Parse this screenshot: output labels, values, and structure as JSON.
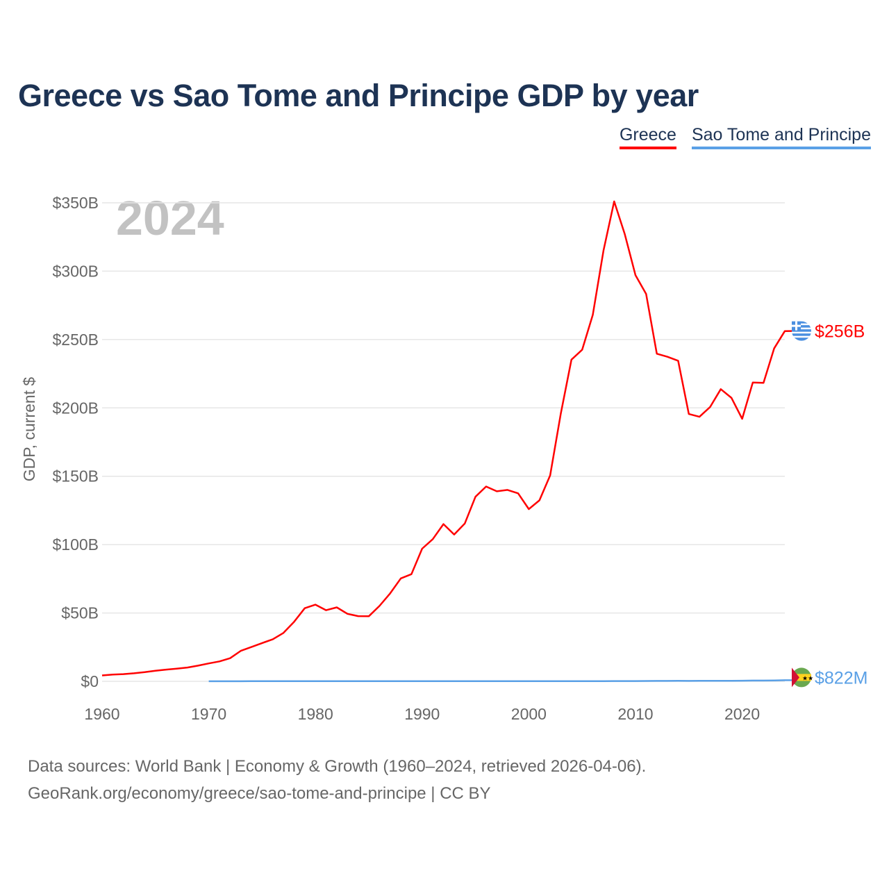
{
  "title": "Greece vs Sao Tome and Principe GDP by year",
  "year_label": "2024",
  "footer": {
    "line1": "Data sources: World Bank | Economy & Growth (1960–2024, retrieved 2026-04-06).",
    "line2": "GeoRank.org/economy/greece/sao-tome-and-principe | CC BY"
  },
  "chart_data": {
    "type": "line",
    "title": "Greece vs Sao Tome and Principe GDP by year",
    "xlabel": "",
    "ylabel": "GDP, current $",
    "xlim": [
      1960,
      2024
    ],
    "ylim": [
      0,
      350
    ],
    "y_units": "billions USD",
    "grid": true,
    "legend_placement": "top-right",
    "x_ticks": [
      1960,
      1970,
      1980,
      1990,
      2000,
      2010,
      2020
    ],
    "x_tick_labels": [
      "1960",
      "1970",
      "1980",
      "1990",
      "2000",
      "2010",
      "2020"
    ],
    "y_ticks": [
      0,
      50,
      100,
      150,
      200,
      250,
      300,
      350
    ],
    "y_tick_labels": [
      "$0",
      "$50B",
      "$100B",
      "$150B",
      "$200B",
      "$250B",
      "$300B",
      "$350B"
    ],
    "series": [
      {
        "name": "Greece",
        "color": "#ff0000",
        "end_label": "$256B",
        "flag": "greece-flag",
        "start_year": 1960,
        "values": [
          4.3,
          5.0,
          5.3,
          5.9,
          6.7,
          7.7,
          8.6,
          9.3,
          10.1,
          11.5,
          13.1,
          14.6,
          16.9,
          22.3,
          25.1,
          28.0,
          30.8,
          35.4,
          43.6,
          53.5,
          56.1,
          52.0,
          54.1,
          49.4,
          47.7,
          47.6,
          55.1,
          64.3,
          75.3,
          78.4,
          97.0,
          104.0,
          115.0,
          107.4,
          115.4,
          135.0,
          142.5,
          139.0,
          140.0,
          137.5,
          126.0,
          132.4,
          150.6,
          196.0,
          235.3,
          242.5,
          268.0,
          315.0,
          351.0,
          327.0,
          297.0,
          283.3,
          239.6,
          237.4,
          234.5,
          195.5,
          193.5,
          200.7,
          213.7,
          207.3,
          192.0,
          218.6,
          218.3,
          243.5,
          256.2
        ]
      },
      {
        "name": "Sao Tome and Principe",
        "color": "#5aa0e6",
        "end_label": "$822M",
        "flag": "sao-tome-and-principe-flag",
        "start_year": 1970,
        "values": [
          0.05,
          0.05,
          0.06,
          0.07,
          0.08,
          0.09,
          0.08,
          0.09,
          0.1,
          0.12,
          0.13,
          0.11,
          0.1,
          0.1,
          0.09,
          0.08,
          0.09,
          0.1,
          0.1,
          0.1,
          0.13,
          0.12,
          0.13,
          0.12,
          0.12,
          0.11,
          0.12,
          0.1,
          0.08,
          0.08,
          0.08,
          0.08,
          0.09,
          0.1,
          0.11,
          0.13,
          0.14,
          0.15,
          0.19,
          0.2,
          0.2,
          0.25,
          0.28,
          0.31,
          0.35,
          0.32,
          0.34,
          0.38,
          0.42,
          0.43,
          0.47,
          0.55,
          0.55,
          0.6,
          0.82
        ]
      }
    ]
  }
}
